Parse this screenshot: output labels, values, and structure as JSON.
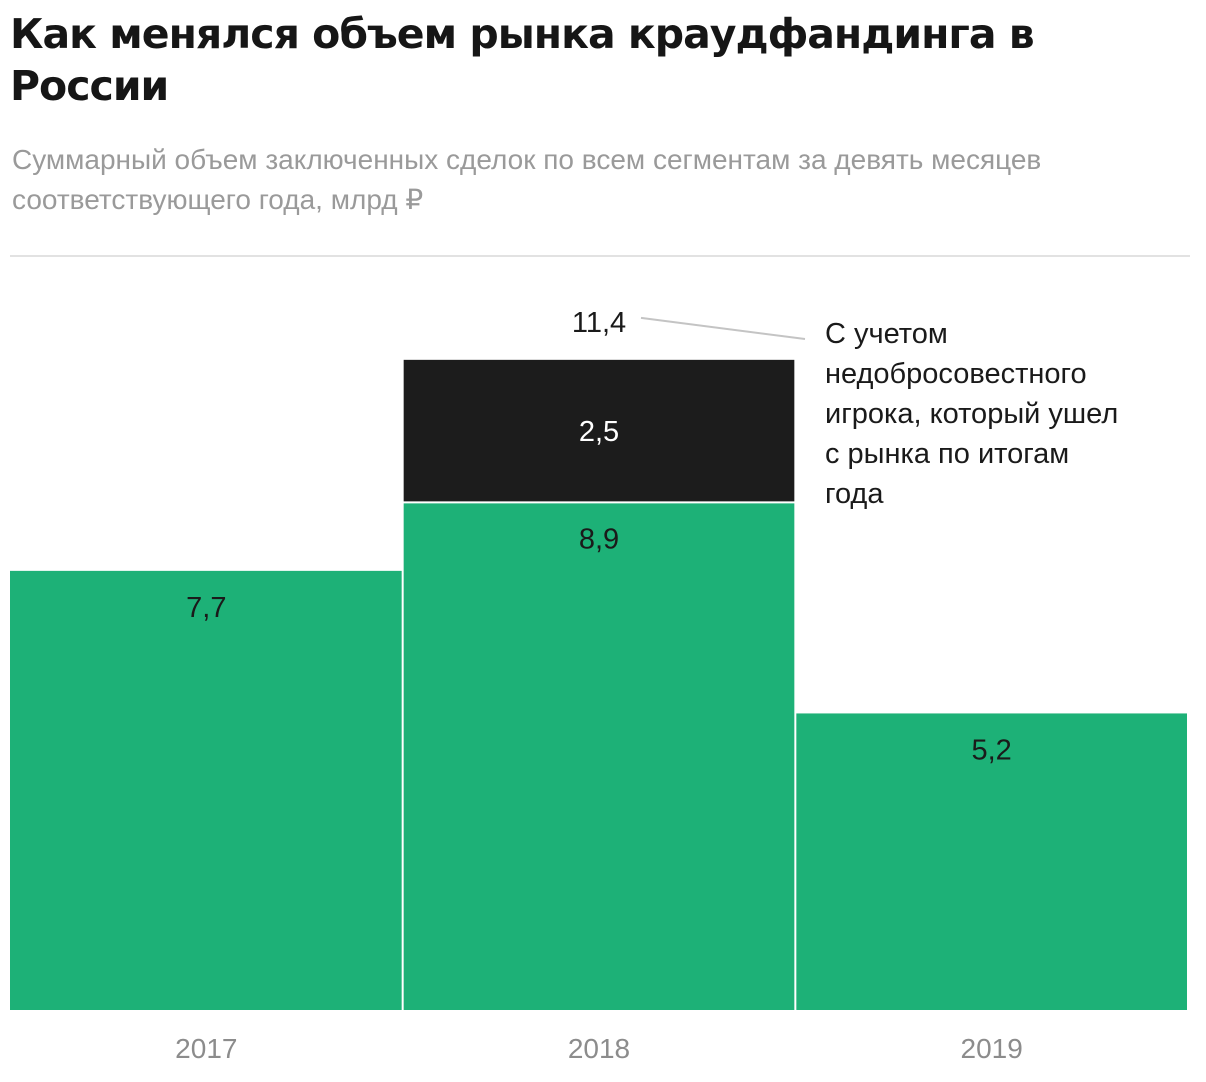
{
  "chart_data": {
    "type": "bar",
    "title": "Как менялся объем рынка краудфандинга в России",
    "subtitle": "Суммарный объем заключенных сделок по всем сегментам за девять месяцев соответствующего года, млрд ₽",
    "categories": [
      "2017",
      "2018",
      "2019"
    ],
    "stacked": true,
    "series": [
      {
        "values": [
          7.7,
          8.9,
          5.2
        ],
        "labels": [
          "7,7",
          "8,9",
          "5,2"
        ],
        "color": "#1db177"
      },
      {
        "values": [
          0,
          2.5,
          0
        ],
        "labels": [
          "",
          "2,5",
          ""
        ],
        "color": "#1c1c1c"
      }
    ],
    "totals": [
      {
        "category": "2018",
        "value": 11.4,
        "label": "11,4"
      }
    ],
    "annotation": {
      "category": "2018",
      "lines": [
        "С учетом",
        "недобросовестного",
        "игрока, который ушел",
        "с рынка по итогам",
        "года"
      ]
    },
    "xlabel": "",
    "ylabel": "",
    "ylim": [
      0,
      12.8
    ],
    "grid": false,
    "legend": "none"
  },
  "colors": {
    "background": "#ffffff",
    "green": "#1db177",
    "dark": "#1c1c1c",
    "muted_text": "#9a9a9a",
    "divider": "#e2e2e2"
  }
}
